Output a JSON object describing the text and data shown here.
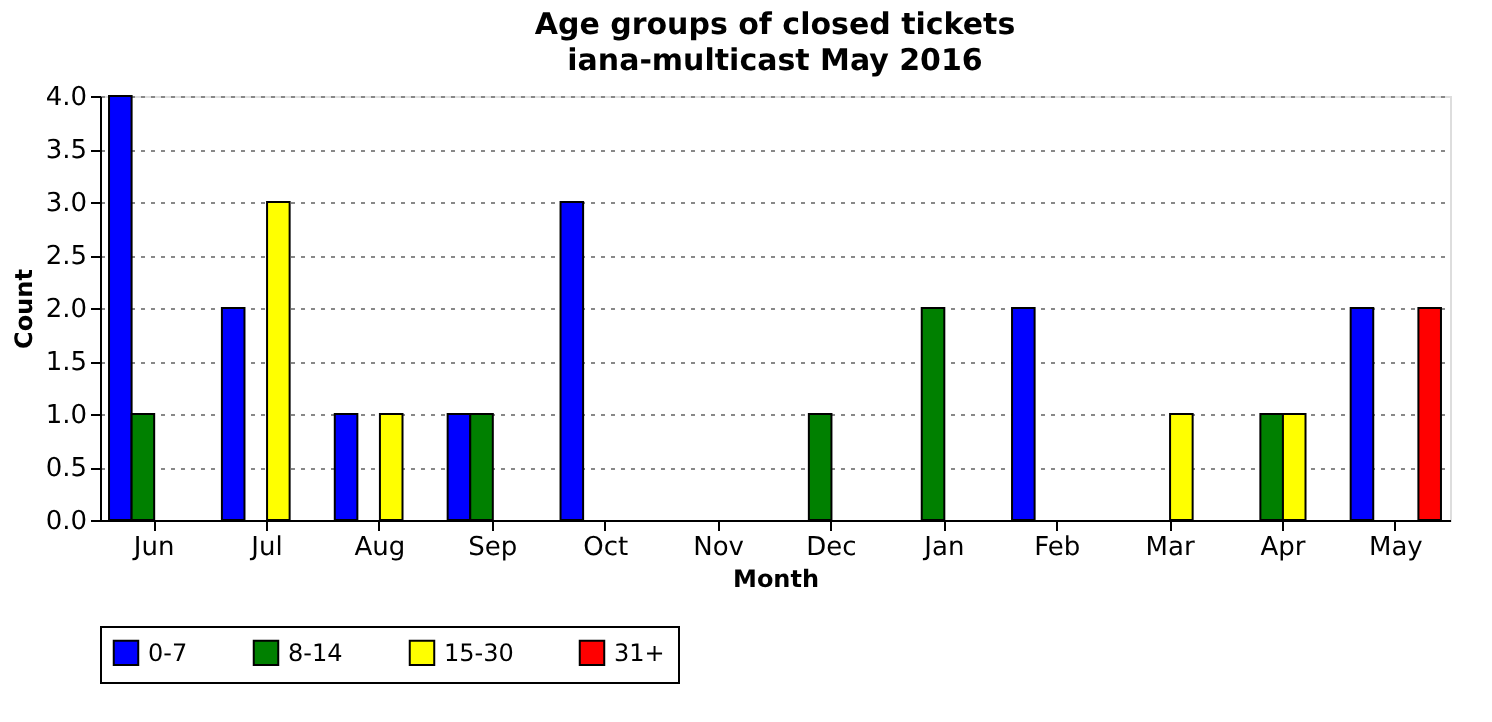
{
  "chart_data": {
    "type": "bar",
    "title": "Age groups of closed tickets",
    "subtitle": "iana-multicast May 2016",
    "xlabel": "Month",
    "ylabel": "Count",
    "categories": [
      "Jun",
      "Jul",
      "Aug",
      "Sep",
      "Oct",
      "Nov",
      "Dec",
      "Jan",
      "Feb",
      "Mar",
      "Apr",
      "May"
    ],
    "series": [
      {
        "name": "0-7",
        "color": "#0000ff",
        "values": [
          4,
          2,
          1,
          1,
          3,
          0,
          0,
          0,
          2,
          0,
          0,
          2
        ]
      },
      {
        "name": "8-14",
        "color": "#008000",
        "values": [
          1,
          0,
          0,
          1,
          0,
          0,
          1,
          2,
          0,
          0,
          1,
          0
        ]
      },
      {
        "name": "15-30",
        "color": "#ffff00",
        "values": [
          0,
          3,
          1,
          0,
          0,
          0,
          0,
          0,
          0,
          1,
          1,
          0
        ]
      },
      {
        "name": "31+",
        "color": "#ff0000",
        "values": [
          0,
          0,
          0,
          0,
          0,
          0,
          0,
          0,
          0,
          0,
          0,
          2
        ]
      }
    ],
    "ylim": [
      0,
      4
    ],
    "yticks": [
      {
        "value": 0,
        "label": "0.0"
      },
      {
        "value": 0.5,
        "label": "0.5"
      },
      {
        "value": 1,
        "label": "1.0"
      },
      {
        "value": 1.5,
        "label": "1.5"
      },
      {
        "value": 2,
        "label": "2.0"
      },
      {
        "value": 2.5,
        "label": "2.5"
      },
      {
        "value": 3,
        "label": "3.0"
      },
      {
        "value": 3.5,
        "label": "3.5"
      },
      {
        "value": 4,
        "label": "4.0"
      }
    ],
    "grid": "y",
    "legend": "bottom"
  }
}
